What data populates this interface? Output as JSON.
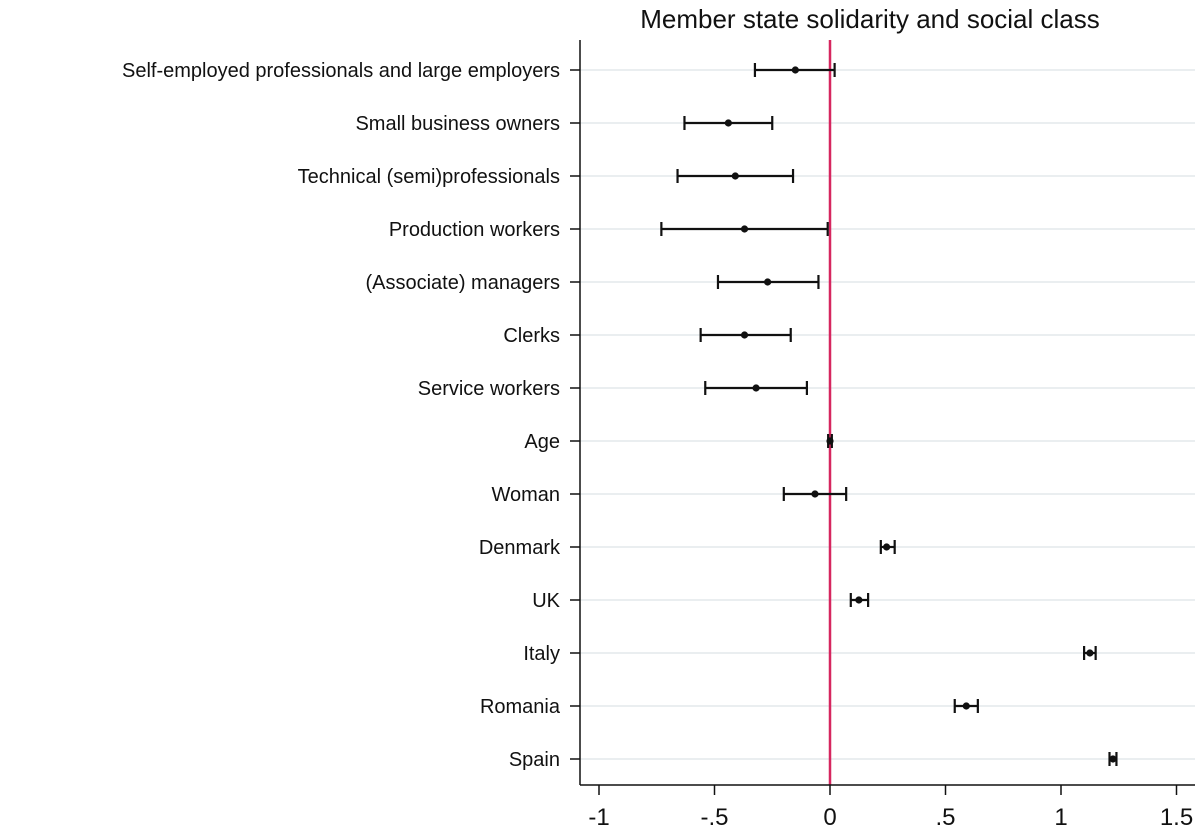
{
  "chart_data": {
    "type": "scatter",
    "subtype": "coefficient-plot-with-confidence-intervals",
    "title": "Member state solidarity and social class",
    "xlabel": "",
    "ylabel": "",
    "xlim": [
      -1.05,
      1.57
    ],
    "xticks": [
      -1,
      -0.5,
      0,
      0.5,
      1,
      1.5
    ],
    "xtick_labels": [
      "-1",
      "-.5",
      "0",
      ".5",
      "1",
      "1.5"
    ],
    "reference_line": {
      "x": 0,
      "color": "#d6265f"
    },
    "grid": "horizontal",
    "marker_color": "#111111",
    "categories": [
      "Self-employed professionals and large employers",
      "Small business owners",
      "Technical (semi)professionals",
      "Production workers",
      "(Associate) managers",
      "Clerks",
      "Service workers",
      "Age",
      "Woman",
      "Denmark",
      "UK",
      "Italy",
      "Romania",
      "Spain"
    ],
    "estimates": [
      -0.15,
      -0.44,
      -0.41,
      -0.37,
      -0.27,
      -0.37,
      -0.32,
      0.0,
      -0.065,
      0.245,
      0.125,
      1.125,
      0.59,
      1.225
    ],
    "ci_low": [
      -0.325,
      -0.63,
      -0.66,
      -0.73,
      -0.485,
      -0.56,
      -0.54,
      -0.008,
      -0.2,
      0.22,
      0.09,
      1.1,
      0.54,
      1.21
    ],
    "ci_high": [
      0.02,
      -0.25,
      -0.16,
      -0.01,
      -0.05,
      -0.17,
      -0.1,
      0.008,
      0.07,
      0.28,
      0.165,
      1.15,
      0.64,
      1.24
    ]
  }
}
